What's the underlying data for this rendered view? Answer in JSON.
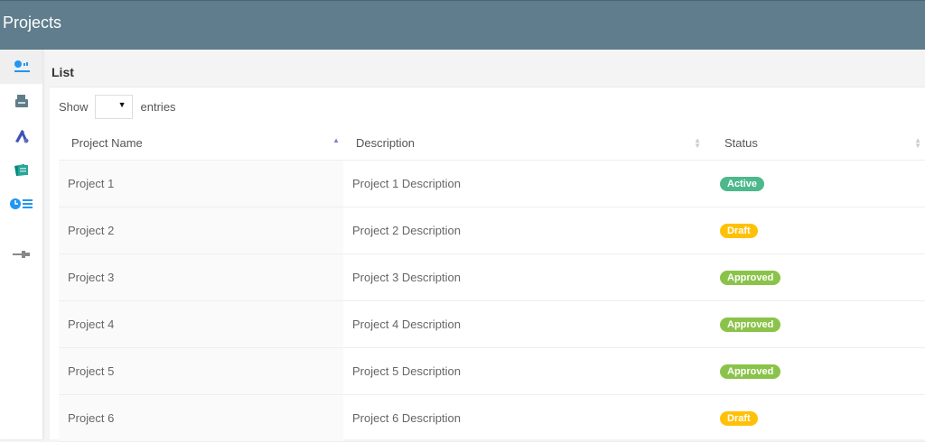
{
  "header": {
    "title": "Projects",
    "color": "#5f7d8c"
  },
  "sidebar": {
    "items": [
      {
        "icon": "dashboard-icon",
        "color": "#2196f3"
      },
      {
        "icon": "printer-icon",
        "color": "#607d8b"
      },
      {
        "icon": "tools-icon",
        "color": "#3f51b5"
      },
      {
        "icon": "notes-icon",
        "color": "#009688"
      },
      {
        "icon": "clock-list-icon",
        "color": "#2196f3"
      },
      {
        "icon": "pin-icon",
        "color": "#888888"
      }
    ]
  },
  "list": {
    "title": "List",
    "show_label": "Show",
    "entries_label": "entries",
    "entries_value": ""
  },
  "table": {
    "columns": [
      "Project Name",
      "Description",
      "Status"
    ],
    "sorted_column": "Project Name",
    "sort_direction": "ascending",
    "rows": [
      {
        "name": "Project 1",
        "description": "Project 1 Description",
        "status": "Active"
      },
      {
        "name": "Project 2",
        "description": "Project 2 Description",
        "status": "Draft"
      },
      {
        "name": "Project 3",
        "description": "Project 3 Description",
        "status": "Approved"
      },
      {
        "name": "Project 4",
        "description": "Project 4 Description",
        "status": "Approved"
      },
      {
        "name": "Project 5",
        "description": "Project 5 Description",
        "status": "Approved"
      },
      {
        "name": "Project 6",
        "description": "Project 6 Description",
        "status": "Draft"
      }
    ]
  },
  "status_colors": {
    "Active": "#4db88c",
    "Draft": "#ffc107",
    "Approved": "#8bc34a"
  }
}
